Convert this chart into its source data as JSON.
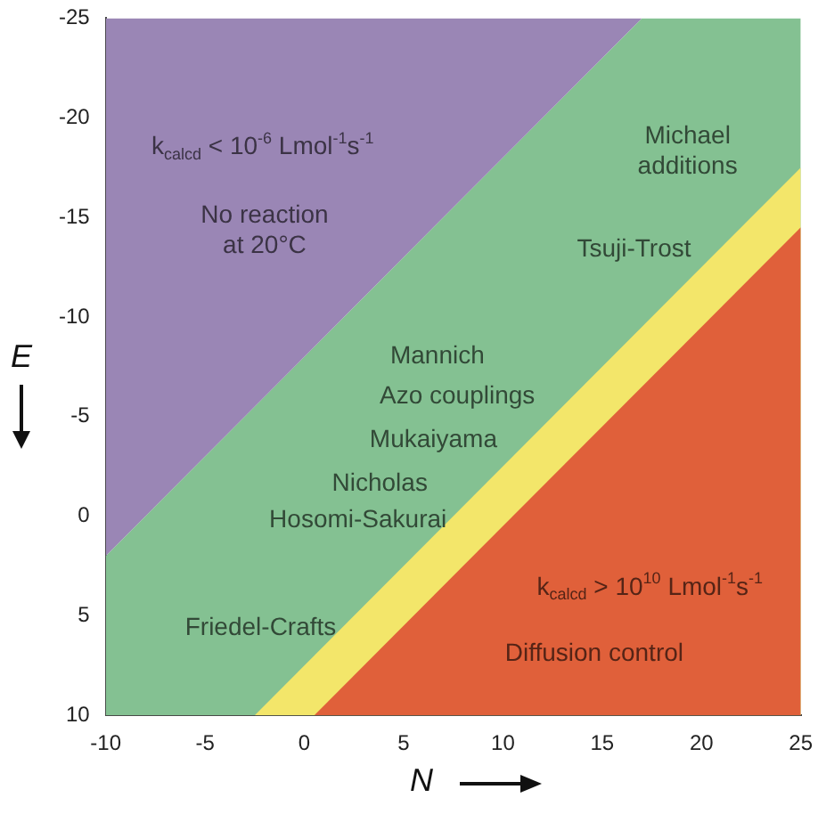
{
  "chart_data": {
    "type": "area",
    "xlabel": "N",
    "ylabel": "E",
    "xlim": [
      -10,
      25
    ],
    "ylim": [
      10,
      -25
    ],
    "xticks": [
      -10,
      -5,
      0,
      5,
      10,
      15,
      20,
      25
    ],
    "yticks": [
      -25,
      -20,
      -15,
      -10,
      -5,
      0,
      5,
      10
    ],
    "grid": false,
    "legend": false,
    "series": [
      {
        "color": "#84c192",
        "x": [
          -10,
          -10,
          17,
          25,
          25
        ],
        "values": [
          10,
          2,
          -25,
          -25,
          10
        ]
      },
      {
        "color": "#f3e66a",
        "x": [
          -2.5,
          25
        ],
        "values": [
          10,
          -17.5
        ]
      },
      {
        "color": "#e0603a",
        "x": [
          0.5,
          25
        ],
        "values": [
          10,
          -14.5
        ]
      },
      {
        "color": "#9a86b5",
        "x": [
          -10,
          -10,
          17
        ],
        "values": [
          -25,
          2,
          -25
        ]
      }
    ],
    "annotations": [
      "k$_{calcd}$ < 10$^{-6}$ Lmol$^{-1}$s$^{-1}$",
      "No reaction\nat 20°C",
      "Michael\nadditions",
      "Tsuji-Trost",
      "Mannich",
      "Azo couplings",
      "Mukaiyama",
      "Nicholas",
      "Hosomi-Sakurai",
      "k$_{calcd}$ > 10$^{10}$ Lmol$^{-1}$s$^{-1}$",
      "Diffusion control",
      "Friedel-Crafts"
    ]
  }
}
